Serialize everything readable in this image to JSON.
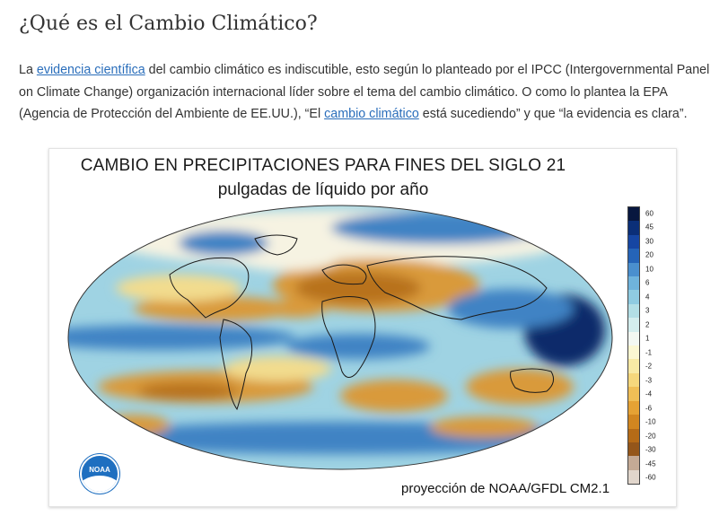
{
  "article": {
    "title": "¿Qué es el Cambio Climático?",
    "para": {
      "t1": "La ",
      "link1": "evidencia científica",
      "t2": " del cambio climático es indiscutible, esto según lo planteado por el IPCC (Intergovernmental Panel on Climate Change) organización internacional líder sobre el tema del cambio climático. O como lo plantea la EPA (Agencia de Protección del Ambiente de EE.UU.), “El ",
      "link2": "cambio climático",
      "t3": " está sucediendo” y que “la evidencia es clara”."
    }
  },
  "figure": {
    "title": "CAMBIO EN PRECIPITACIONES PARA FINES DEL SIGLO 21",
    "subtitle": "pulgadas de líquido por año",
    "credit": "proyección de NOAA/GFDL CM2.1",
    "logo_text": "NOAA",
    "colorbar": {
      "ticks": [
        "60",
        "45",
        "30",
        "20",
        "10",
        "6",
        "4",
        "3",
        "2",
        "1",
        "-1",
        "-2",
        "-3",
        "-4",
        "-6",
        "-10",
        "-20",
        "-30",
        "-45",
        "-60"
      ],
      "colors": [
        "#08173f",
        "#0b2f78",
        "#1646a3",
        "#2564b8",
        "#4a8fce",
        "#6fb3dc",
        "#8fcbe1",
        "#b3dfe6",
        "#d4eeee",
        "#f3f8f2",
        "#fbf7d2",
        "#f8eaa5",
        "#f5d77c",
        "#efbe56",
        "#e5a234",
        "#d18620",
        "#b56b17",
        "#94561a",
        "#c4aa95",
        "#e1d6cc"
      ]
    },
    "map_palette": {
      "ocean_base": "#9fd3e3",
      "dry": "#d99a3a",
      "very_dry": "#b8721f",
      "light_dry": "#f2dc8e",
      "wet": "#3f83c4",
      "very_wet": "#0c2a6b",
      "neutral": "#f6f3e2",
      "land_outline": "#1a1a1a"
    },
    "map_icon": "world-map-icon"
  }
}
